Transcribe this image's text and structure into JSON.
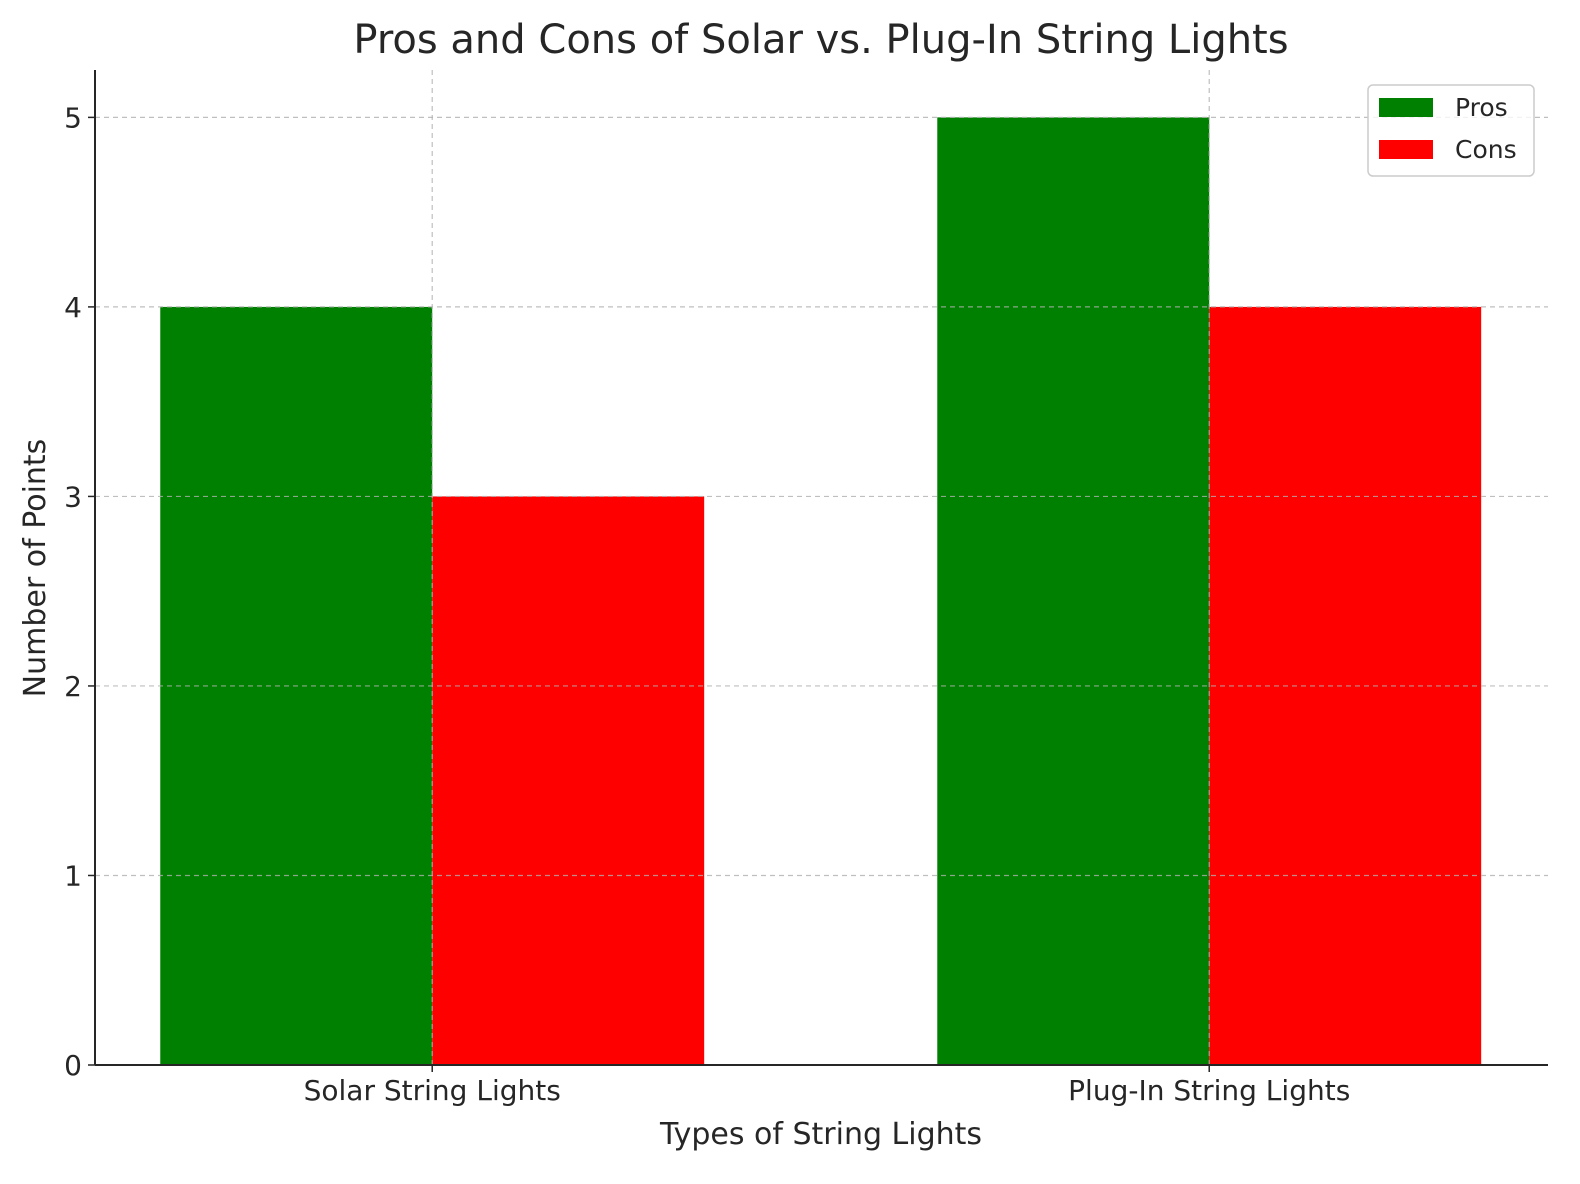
{
  "chart_data": {
    "type": "bar",
    "title": "Pros and Cons of Solar vs. Plug-In String Lights",
    "xlabel": "Types of String Lights",
    "ylabel": "Number of Points",
    "categories": [
      "Solar String Lights",
      "Plug-In String Lights"
    ],
    "series": [
      {
        "name": "Pros",
        "values": [
          4,
          5
        ],
        "color": "#008000"
      },
      {
        "name": "Cons",
        "values": [
          3,
          4
        ],
        "color": "#ff0000"
      }
    ],
    "ylim": [
      0,
      5.25
    ],
    "yticks": [
      0,
      1,
      2,
      3,
      4,
      5
    ],
    "grid": true,
    "legend": "top-right"
  }
}
